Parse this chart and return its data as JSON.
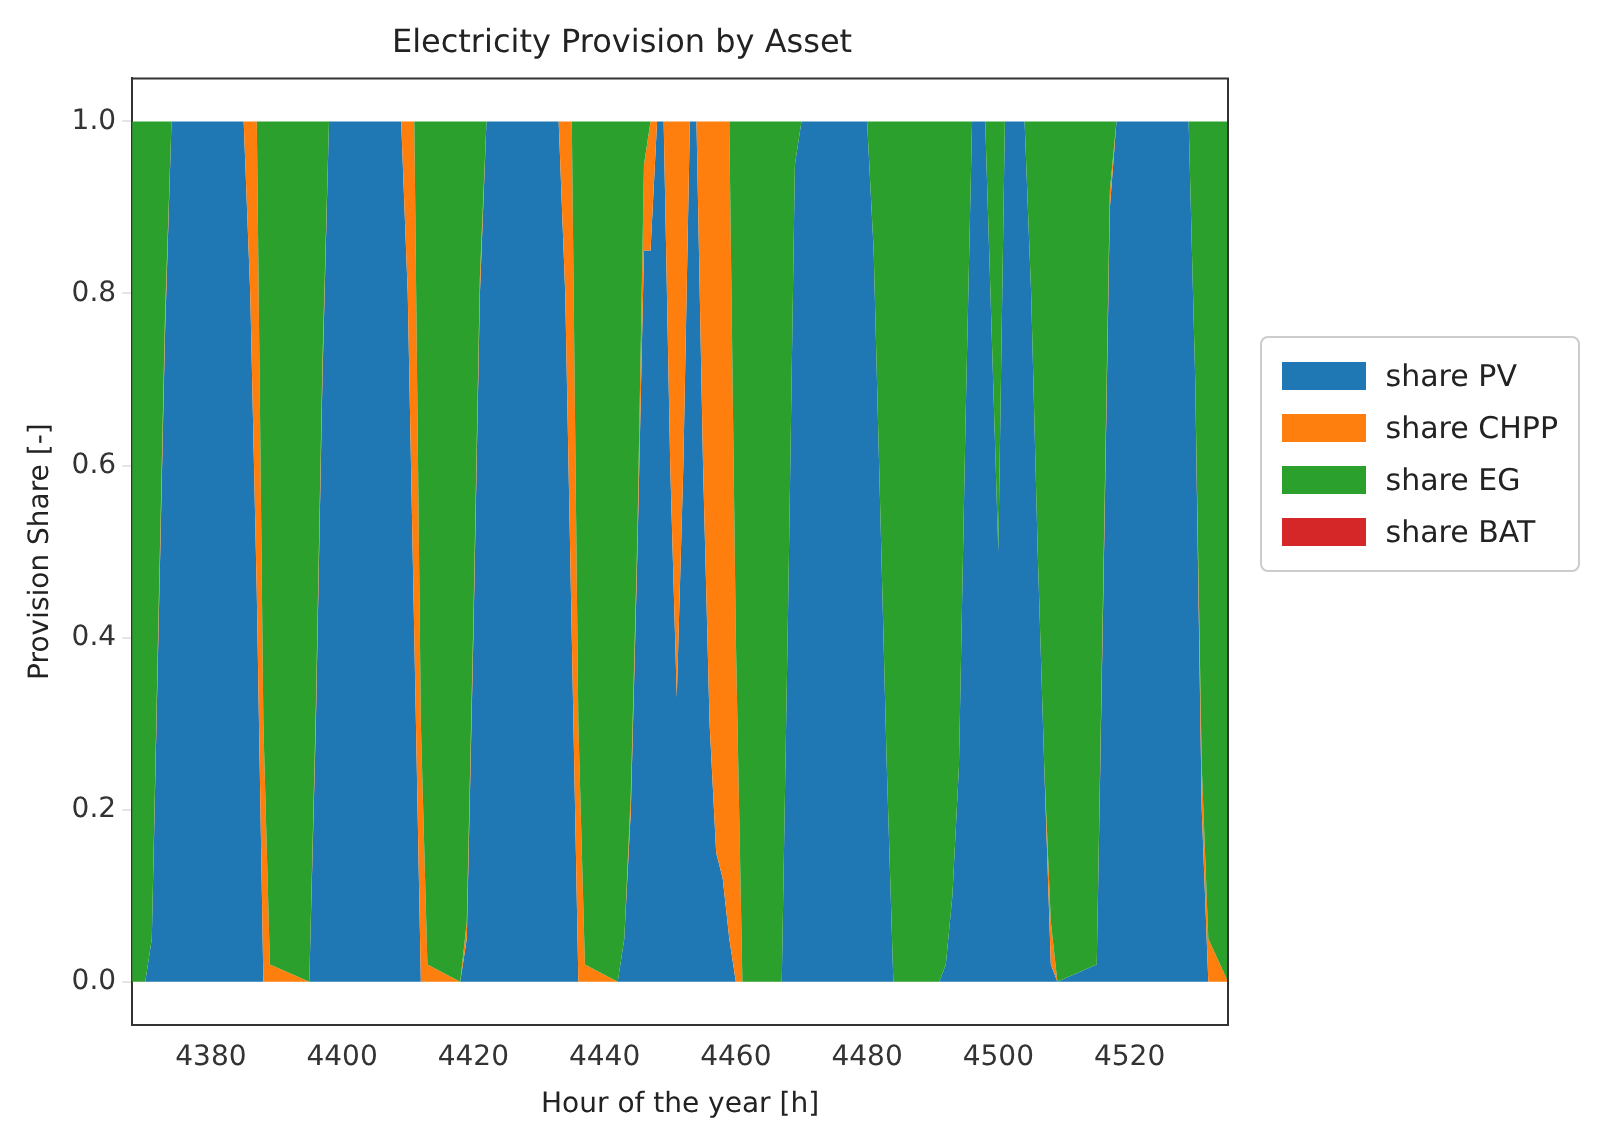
{
  "chart_data": {
    "type": "area",
    "stacked": true,
    "title": "Electricity Provision by Asset",
    "xlabel": "Hour of the year [h]",
    "ylabel": "Provision Share [-]",
    "x": [
      4368,
      4370,
      4371,
      4372,
      4373,
      4374,
      4385,
      4386,
      4387,
      4388,
      4389,
      4395,
      4396,
      4397,
      4398,
      4409,
      4410,
      4411,
      4412,
      4413,
      4418,
      4419,
      4420,
      4421,
      4422,
      4433,
      4434,
      4435,
      4436,
      4437,
      4442,
      4443,
      4444,
      4445,
      4446,
      4447,
      4448,
      4449,
      4450,
      4451,
      4452,
      4453,
      4454,
      4455,
      4456,
      4457,
      4458,
      4459,
      4460,
      4461,
      4467,
      4468,
      4469,
      4470,
      4480,
      4481,
      4482,
      4483,
      4484,
      4491,
      4492,
      4493,
      4494,
      4495,
      4496,
      4498,
      4499,
      4500,
      4501,
      4504,
      4505,
      4506,
      4507,
      4508,
      4509,
      4515,
      4516,
      4517,
      4518,
      4529,
      4530,
      4531,
      4532,
      4535
    ],
    "series": [
      {
        "name": "share PV",
        "color": "#1f77b4",
        "values": [
          null,
          0,
          0.05,
          0.4,
          0.75,
          1,
          1,
          0.8,
          0.45,
          0,
          null,
          0,
          0.3,
          0.7,
          1,
          1,
          0.8,
          0.4,
          0,
          null,
          0,
          0.05,
          0.4,
          0.8,
          1,
          1,
          0.8,
          0.4,
          0,
          null,
          0,
          0.05,
          0.2,
          0.5,
          0.85,
          0.85,
          1,
          1,
          0.6,
          0.33,
          0.6,
          1,
          1,
          0.6,
          0.3,
          0.15,
          0.12,
          0.05,
          0,
          null,
          0,
          0.45,
          0.95,
          1,
          1,
          0.85,
          0.55,
          0.25,
          0,
          0,
          0.02,
          0.1,
          0.25,
          0.65,
          1,
          1,
          0.75,
          0.5,
          1,
          1,
          0.8,
          0.5,
          0.25,
          0.02,
          0,
          0.02,
          0.45,
          0.9,
          1,
          1,
          0.7,
          0.2,
          0,
          null
        ]
      },
      {
        "name": "share CHPP",
        "color": "#ff7f0e",
        "values": [
          null,
          null,
          0,
          0.02,
          0.02,
          0,
          0,
          0.2,
          0.55,
          0.3,
          0.02,
          0,
          0.02,
          0.02,
          0,
          0,
          0.2,
          0.6,
          0.3,
          0.02,
          0,
          0.02,
          0.02,
          0.02,
          0,
          0,
          0.2,
          0.6,
          0.3,
          0.02,
          0,
          0,
          0.02,
          0.02,
          0.1,
          0.15,
          0,
          0,
          0.4,
          0.67,
          0.4,
          0,
          0,
          0.4,
          0.7,
          0.85,
          0.88,
          0.95,
          0.4,
          0,
          null,
          null,
          null,
          null,
          null,
          null,
          null,
          null,
          null,
          null,
          null,
          null,
          null,
          null,
          null,
          null,
          null,
          null,
          null,
          null,
          null,
          null,
          0,
          0.05,
          0,
          0,
          0.02,
          0.02,
          0,
          null,
          0,
          0.05,
          0.05,
          0
        ]
      },
      {
        "name": "share EG",
        "color": "#2ca02c",
        "values": [
          1,
          1,
          0.95,
          0.58,
          0.23,
          0,
          null,
          null,
          0,
          0.7,
          0.98,
          1,
          0.68,
          0.28,
          0,
          null,
          null,
          0,
          0.7,
          0.98,
          1,
          0.93,
          0.58,
          0.18,
          0,
          null,
          null,
          0,
          0.7,
          0.98,
          1,
          0.95,
          0.78,
          0.48,
          0.05,
          0,
          null,
          null,
          null,
          null,
          null,
          null,
          null,
          null,
          null,
          null,
          null,
          0,
          0.6,
          1,
          1,
          0.55,
          0.05,
          0,
          0,
          0.15,
          0.45,
          0.75,
          1,
          1,
          0.98,
          0.9,
          0.75,
          0.35,
          0,
          0,
          0.25,
          0.5,
          0,
          0,
          0.2,
          0.5,
          0.75,
          0.93,
          1,
          0.98,
          0.53,
          0.08,
          0,
          0,
          0.3,
          0.75,
          0.95,
          1
        ]
      },
      {
        "name": "share BAT",
        "color": "#d62728",
        "values": [
          null,
          null,
          null,
          null,
          null,
          null,
          null,
          null,
          null,
          null,
          null,
          null,
          null,
          null,
          null,
          null,
          null,
          null,
          null,
          null,
          null,
          null,
          null,
          null,
          null,
          null,
          null,
          null,
          null,
          null,
          null,
          null,
          null,
          null,
          null,
          null,
          null,
          null,
          null,
          null,
          null,
          null,
          null,
          null,
          null,
          null,
          null,
          null,
          null,
          null,
          null,
          null,
          null,
          null,
          null,
          null,
          null,
          null,
          null,
          null,
          null,
          null,
          null,
          null,
          null,
          null,
          null,
          null,
          null,
          null,
          null,
          null,
          null,
          null,
          null,
          null,
          null,
          null,
          null,
          null,
          null,
          null,
          null,
          null
        ]
      }
    ],
    "xlim": [
      4368,
      4535
    ],
    "xticks": [
      4380,
      4400,
      4420,
      4440,
      4460,
      4480,
      4500,
      4520
    ],
    "ylim": [
      -0.05,
      1.05
    ],
    "yticks": [
      {
        "value": 0,
        "label": "0.0"
      },
      {
        "value": 0.2,
        "label": "0.2"
      },
      {
        "value": 0.4,
        "label": "0.4"
      },
      {
        "value": 0.6,
        "label": "0.6"
      },
      {
        "value": 0.8,
        "label": "0.8"
      },
      {
        "value": 1,
        "label": "1.0"
      }
    ],
    "grid": false,
    "legend": "right"
  }
}
